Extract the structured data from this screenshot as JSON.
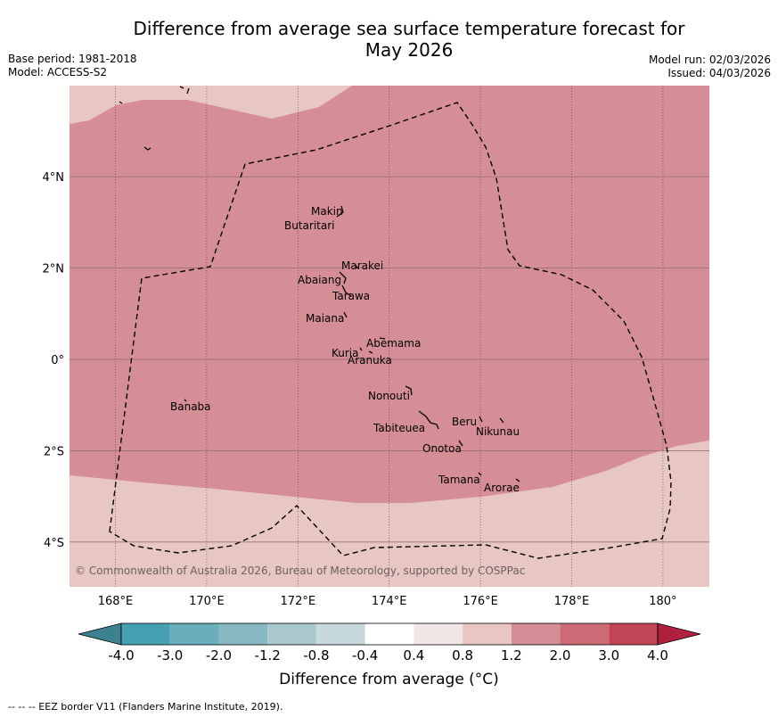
{
  "title": "Difference from average sea surface temperature forecast for May 2026",
  "title_line1": "Difference from average sea surface temperature forecast for",
  "title_line2": "May 2026",
  "base_period": "Base period: 1981-2018",
  "model": "Model: ACCESS-S2",
  "model_run": "Model run: 02/03/2026",
  "issued": "Issued: 04/03/2026",
  "copyright": "© Commonwealth of Australia 2026, Bureau of Meteorology, supported by COSPPac",
  "colorbar_label": "Difference from average (°C)",
  "footnote": "-- -- -- EEZ border V11 (Flanders Marine Institute, 2019).",
  "colors": {
    "band_0.8_1.2": "#e8c6c2",
    "band_1.2_2.0": "#d58e95",
    "eez": "#000000"
  },
  "chart_data": {
    "type": "heatmap",
    "x_axis": {
      "range": [
        167,
        181
      ],
      "ticks": [
        168,
        170,
        172,
        174,
        176,
        178,
        180
      ],
      "tick_labels": [
        "168°E",
        "170°E",
        "172°E",
        "174°E",
        "176°E",
        "178°E",
        "180°"
      ]
    },
    "y_axis": {
      "range": [
        -5,
        6
      ],
      "ticks": [
        4,
        2,
        0,
        -2,
        -4
      ],
      "tick_labels": [
        "4°N",
        "2°N",
        "0°",
        "2°S",
        "4°S"
      ]
    },
    "colorbar": {
      "levels": [
        "-4.0",
        "-3.0",
        "-2.0",
        "-1.2",
        "-0.8",
        "-0.4",
        "0.4",
        "0.8",
        "1.2",
        "2.0",
        "3.0",
        "4.0"
      ],
      "colors": [
        "#3d8190",
        "#45a1b2",
        "#6aaebb",
        "#88b8c2",
        "#a8c8cd",
        "#c8d9dd",
        "#ffffff",
        "#efe7e5",
        "#e8c6c2",
        "#d58e95",
        "#cc6a75",
        "#c04555",
        "#b0203f"
      ]
    },
    "islands": [
      {
        "name": "Makin",
        "lon": 173.0,
        "lat": 3.2
      },
      {
        "name": "Butaritari",
        "lon": 172.8,
        "lat": 3.1
      },
      {
        "name": "Marakei",
        "lon": 173.3,
        "lat": 2.0
      },
      {
        "name": "Abaiang",
        "lon": 172.9,
        "lat": 1.8
      },
      {
        "name": "Tarawa",
        "lon": 173.0,
        "lat": 1.4
      },
      {
        "name": "Maiana",
        "lon": 173.0,
        "lat": 1.0
      },
      {
        "name": "Abemama",
        "lon": 173.8,
        "lat": 0.4
      },
      {
        "name": "Kuria",
        "lon": 173.4,
        "lat": 0.2
      },
      {
        "name": "Aranuka",
        "lon": 173.6,
        "lat": 0.2
      },
      {
        "name": "Nonouti",
        "lon": 174.4,
        "lat": -0.6
      },
      {
        "name": "Banaba",
        "lon": 169.5,
        "lat": -0.9
      },
      {
        "name": "Tabiteuea",
        "lon": 174.8,
        "lat": -1.3
      },
      {
        "name": "Beru",
        "lon": 176.0,
        "lat": -1.3
      },
      {
        "name": "Nikunau",
        "lon": 176.4,
        "lat": -1.4
      },
      {
        "name": "Onotoa",
        "lon": 175.6,
        "lat": -1.8
      },
      {
        "name": "Tamana",
        "lon": 176.0,
        "lat": -2.5
      },
      {
        "name": "Arorae",
        "lon": 176.8,
        "lat": -2.6
      }
    ]
  }
}
